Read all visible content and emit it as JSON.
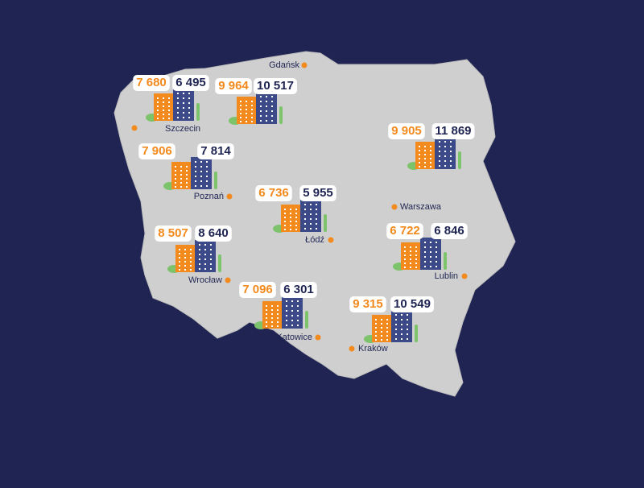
{
  "cities": [
    {
      "name": "Szczecin",
      "value_a": "7 680",
      "value_b": "6 495"
    },
    {
      "name": "Gdańsk",
      "value_a": "9 964",
      "value_b": "10 517"
    },
    {
      "name": "Poznań",
      "value_a": "7 906",
      "value_b": "7 814"
    },
    {
      "name": "Warszawa",
      "value_a": "9 905",
      "value_b": "11 869"
    },
    {
      "name": "Łódź",
      "value_a": "6 736",
      "value_b": "5 955"
    },
    {
      "name": "Wrocław",
      "value_a": "8 507",
      "value_b": "8 640"
    },
    {
      "name": "Lublin",
      "value_a": "6 722",
      "value_b": "6 846"
    },
    {
      "name": "Katowice",
      "value_a": "7 096",
      "value_b": "6 301"
    },
    {
      "name": "Kraków",
      "value_a": "9 315",
      "value_b": "10 549"
    }
  ]
}
